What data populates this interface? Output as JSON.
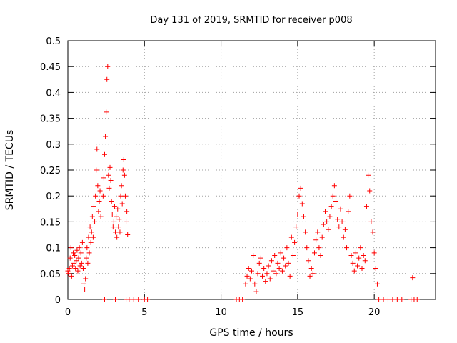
{
  "chart_data": {
    "type": "scatter",
    "title": "Day 131 of 2019, SRMTID for receiver p008",
    "xlabel": "GPS time / hours",
    "ylabel": "SRMTID / TECUs",
    "xlim": [
      0,
      24
    ],
    "ylim": [
      0,
      0.5
    ],
    "xticks": [
      0,
      5,
      10,
      15,
      20
    ],
    "yticks": [
      0,
      0.05,
      0.1,
      0.15,
      0.2,
      0.25,
      0.3,
      0.35,
      0.4,
      0.45,
      0.5
    ],
    "xtick_labels": [
      "0",
      "5",
      "10",
      "15",
      "20"
    ],
    "ytick_labels": [
      "0",
      "0.05",
      "0.1",
      "0.15",
      "0.2",
      "0.25",
      "0.3",
      "0.35",
      "0.4",
      "0.45",
      "0.5"
    ],
    "grid": true,
    "marker": "+",
    "color": "#ff0000",
    "series": [
      {
        "name": "SRMTID",
        "points": [
          [
            0.0,
            0.055
          ],
          [
            0.05,
            0.05
          ],
          [
            0.1,
            0.06
          ],
          [
            0.15,
            0.08
          ],
          [
            0.2,
            0.1
          ],
          [
            0.25,
            0.045
          ],
          [
            0.3,
            0.065
          ],
          [
            0.35,
            0.09
          ],
          [
            0.4,
            0.07
          ],
          [
            0.45,
            0.085
          ],
          [
            0.5,
            0.06
          ],
          [
            0.55,
            0.075
          ],
          [
            0.6,
            0.095
          ],
          [
            0.65,
            0.055
          ],
          [
            0.7,
            0.08
          ],
          [
            0.75,
            0.1
          ],
          [
            0.8,
            0.065
          ],
          [
            0.85,
            0.09
          ],
          [
            0.9,
            0.07
          ],
          [
            0.95,
            0.11
          ],
          [
            1.0,
            0.06
          ],
          [
            1.05,
            0.03
          ],
          [
            1.1,
            0.02
          ],
          [
            1.15,
            0.04
          ],
          [
            1.2,
            0.08
          ],
          [
            1.25,
            0.1
          ],
          [
            1.3,
            0.07
          ],
          [
            1.35,
            0.12
          ],
          [
            1.4,
            0.09
          ],
          [
            1.45,
            0.14
          ],
          [
            1.5,
            0.11
          ],
          [
            1.55,
            0.13
          ],
          [
            1.6,
            0.16
          ],
          [
            1.65,
            0.12
          ],
          [
            1.7,
            0.18
          ],
          [
            1.75,
            0.15
          ],
          [
            1.8,
            0.2
          ],
          [
            1.85,
            0.25
          ],
          [
            1.9,
            0.29
          ],
          [
            1.95,
            0.22
          ],
          [
            2.0,
            0.17
          ],
          [
            2.05,
            0.19
          ],
          [
            2.1,
            0.21
          ],
          [
            2.15,
            0.16
          ],
          [
            2.3,
            0.2
          ],
          [
            2.35,
            0.235
          ],
          [
            2.4,
            0.28
          ],
          [
            2.45,
            0.315
          ],
          [
            2.5,
            0.362
          ],
          [
            2.55,
            0.425
          ],
          [
            2.6,
            0.45
          ],
          [
            2.65,
            0.24
          ],
          [
            2.7,
            0.215
          ],
          [
            2.75,
            0.255
          ],
          [
            2.8,
            0.23
          ],
          [
            2.85,
            0.19
          ],
          [
            2.9,
            0.165
          ],
          [
            2.95,
            0.14
          ],
          [
            3.0,
            0.15
          ],
          [
            3.05,
            0.18
          ],
          [
            3.1,
            0.13
          ],
          [
            3.15,
            0.16
          ],
          [
            3.2,
            0.12
          ],
          [
            3.25,
            0.175
          ],
          [
            3.3,
            0.14
          ],
          [
            3.35,
            0.155
          ],
          [
            3.4,
            0.13
          ],
          [
            3.45,
            0.2
          ],
          [
            3.5,
            0.22
          ],
          [
            3.55,
            0.185
          ],
          [
            3.6,
            0.25
          ],
          [
            3.65,
            0.27
          ],
          [
            3.7,
            0.24
          ],
          [
            3.75,
            0.2
          ],
          [
            3.8,
            0.15
          ],
          [
            3.85,
            0.17
          ],
          [
            3.9,
            0.125
          ],
          [
            11.6,
            0.03
          ],
          [
            11.7,
            0.045
          ],
          [
            11.8,
            0.06
          ],
          [
            11.9,
            0.04
          ],
          [
            12.0,
            0.055
          ],
          [
            12.1,
            0.085
          ],
          [
            12.2,
            0.03
          ],
          [
            12.3,
            0.015
          ],
          [
            12.4,
            0.05
          ],
          [
            12.5,
            0.07
          ],
          [
            12.6,
            0.08
          ],
          [
            12.7,
            0.045
          ],
          [
            12.8,
            0.06
          ],
          [
            12.9,
            0.035
          ],
          [
            13.0,
            0.05
          ],
          [
            13.1,
            0.065
          ],
          [
            13.2,
            0.04
          ],
          [
            13.3,
            0.075
          ],
          [
            13.4,
            0.055
          ],
          [
            13.5,
            0.085
          ],
          [
            13.6,
            0.05
          ],
          [
            13.7,
            0.07
          ],
          [
            13.8,
            0.06
          ],
          [
            13.9,
            0.09
          ],
          [
            14.0,
            0.055
          ],
          [
            14.1,
            0.08
          ],
          [
            14.2,
            0.065
          ],
          [
            14.3,
            0.1
          ],
          [
            14.4,
            0.07
          ],
          [
            14.5,
            0.045
          ],
          [
            14.6,
            0.12
          ],
          [
            14.7,
            0.085
          ],
          [
            14.8,
            0.11
          ],
          [
            14.9,
            0.14
          ],
          [
            15.0,
            0.165
          ],
          [
            15.1,
            0.2
          ],
          [
            15.2,
            0.215
          ],
          [
            15.3,
            0.185
          ],
          [
            15.4,
            0.16
          ],
          [
            15.5,
            0.13
          ],
          [
            15.6,
            0.1
          ],
          [
            15.7,
            0.075
          ],
          [
            15.8,
            0.045
          ],
          [
            15.9,
            0.06
          ],
          [
            16.0,
            0.05
          ],
          [
            16.1,
            0.09
          ],
          [
            16.2,
            0.115
          ],
          [
            16.3,
            0.13
          ],
          [
            16.4,
            0.1
          ],
          [
            16.5,
            0.085
          ],
          [
            16.6,
            0.12
          ],
          [
            16.7,
            0.145
          ],
          [
            16.8,
            0.17
          ],
          [
            16.9,
            0.15
          ],
          [
            17.0,
            0.135
          ],
          [
            17.1,
            0.16
          ],
          [
            17.2,
            0.18
          ],
          [
            17.3,
            0.2
          ],
          [
            17.4,
            0.22
          ],
          [
            17.5,
            0.19
          ],
          [
            17.6,
            0.155
          ],
          [
            17.7,
            0.14
          ],
          [
            17.8,
            0.175
          ],
          [
            17.9,
            0.15
          ],
          [
            18.0,
            0.12
          ],
          [
            18.1,
            0.135
          ],
          [
            18.2,
            0.1
          ],
          [
            18.3,
            0.17
          ],
          [
            18.4,
            0.2
          ],
          [
            18.5,
            0.085
          ],
          [
            18.6,
            0.07
          ],
          [
            18.7,
            0.055
          ],
          [
            18.8,
            0.09
          ],
          [
            18.9,
            0.065
          ],
          [
            19.0,
            0.08
          ],
          [
            19.1,
            0.1
          ],
          [
            19.2,
            0.06
          ],
          [
            19.3,
            0.085
          ],
          [
            19.4,
            0.075
          ],
          [
            19.5,
            0.18
          ],
          [
            19.6,
            0.24
          ],
          [
            19.7,
            0.21
          ],
          [
            19.8,
            0.15
          ],
          [
            19.9,
            0.13
          ],
          [
            20.0,
            0.09
          ],
          [
            20.1,
            0.06
          ],
          [
            20.2,
            0.03
          ],
          [
            22.5,
            0.042
          ],
          [
            2.4,
            0.0
          ],
          [
            3.1,
            0.0
          ],
          [
            3.8,
            0.0
          ],
          [
            4.0,
            0.0
          ],
          [
            4.3,
            0.0
          ],
          [
            4.6,
            0.0
          ],
          [
            5.0,
            0.0
          ],
          [
            5.2,
            0.0
          ],
          [
            11.0,
            0.0
          ],
          [
            11.2,
            0.0
          ],
          [
            11.4,
            0.0
          ],
          [
            20.3,
            0.0
          ],
          [
            20.6,
            0.0
          ],
          [
            20.9,
            0.0
          ],
          [
            21.2,
            0.0
          ],
          [
            21.5,
            0.0
          ],
          [
            21.8,
            0.0
          ],
          [
            22.4,
            0.0
          ],
          [
            22.6,
            0.0
          ],
          [
            22.8,
            0.0
          ]
        ]
      }
    ]
  }
}
